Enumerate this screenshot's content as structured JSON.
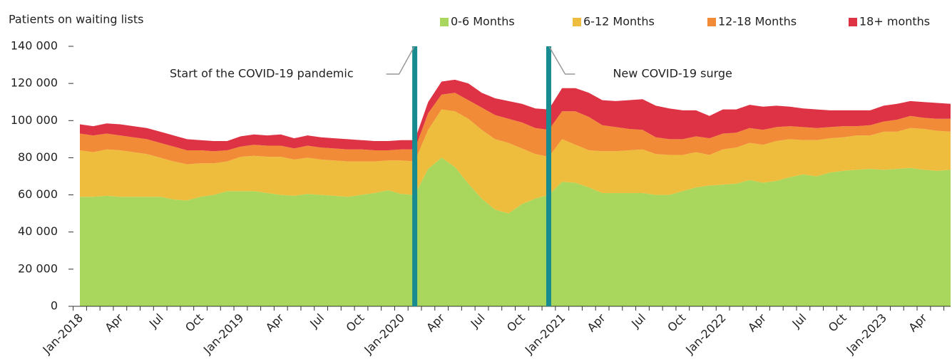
{
  "chart_data": {
    "type": "stacked_area",
    "y_axis_label": "Patients on waiting lists",
    "categories": [
      "Jan-2018",
      null,
      null,
      "Apr",
      null,
      null,
      "Jul",
      null,
      null,
      "Oct",
      null,
      null,
      "Jan-2019",
      null,
      null,
      "Apr",
      null,
      null,
      "Jul",
      null,
      null,
      "Oct",
      null,
      null,
      "Jan-2020",
      null,
      null,
      "Apr",
      null,
      null,
      "Jul",
      null,
      null,
      "Oct",
      null,
      null,
      "Jan-2021",
      null,
      null,
      "Apr",
      null,
      null,
      "Jul",
      null,
      null,
      "Oct",
      null,
      null,
      "Jan-2022",
      null,
      null,
      "Apr",
      null,
      null,
      "Jul",
      null,
      null,
      "Oct",
      null,
      null,
      "Jan-2023",
      null,
      null,
      "Apr",
      null,
      null
    ],
    "series": [
      {
        "name": "0-6 Months",
        "color": "#a9d75e",
        "values": [
          59000,
          59000,
          59500,
          59000,
          59000,
          59000,
          59000,
          57500,
          57000,
          59000,
          60000,
          62000,
          62000,
          62000,
          61000,
          60000,
          59500,
          60500,
          60000,
          59500,
          59000,
          60000,
          61000,
          62500,
          60500,
          60000,
          74000,
          80000,
          75000,
          66000,
          58000,
          52000,
          50000,
          55000,
          58000,
          60000,
          67000,
          66500,
          64000,
          61000,
          61000,
          61000,
          61000,
          60000,
          60000,
          62000,
          64000,
          65000,
          65500,
          66000,
          68000,
          66500,
          67500,
          69500,
          71000,
          70000,
          72000,
          73000,
          73500,
          74000,
          73500,
          74000,
          74500,
          73500,
          73000,
          73500
        ]
      },
      {
        "name": "6-12 Months",
        "color": "#efbd3d",
        "values": [
          25000,
          24000,
          25000,
          25000,
          24000,
          23000,
          21000,
          20500,
          19500,
          18000,
          17000,
          16000,
          18500,
          19000,
          19500,
          20500,
          19500,
          19500,
          19000,
          19000,
          19000,
          18000,
          17000,
          16000,
          18000,
          18000,
          21000,
          26000,
          30000,
          35000,
          37000,
          38000,
          38000,
          30000,
          24000,
          20500,
          23000,
          20500,
          20000,
          22500,
          22500,
          23000,
          23500,
          22000,
          21500,
          19500,
          19000,
          16500,
          19000,
          19500,
          20000,
          20500,
          21500,
          20500,
          18500,
          19500,
          18500,
          18000,
          18500,
          18000,
          20500,
          20000,
          21500,
          22000,
          21500,
          20500
        ]
      },
      {
        "name": "12-18 Months",
        "color": "#f28b37",
        "values": [
          9000,
          9000,
          8500,
          8000,
          8000,
          8000,
          8000,
          8000,
          7500,
          7000,
          6500,
          6000,
          5500,
          6000,
          6000,
          6000,
          6000,
          6500,
          6500,
          6500,
          6500,
          6500,
          6000,
          5500,
          6000,
          6500,
          9000,
          8000,
          10000,
          10000,
          12000,
          13000,
          13000,
          14000,
          14000,
          14500,
          15000,
          18000,
          18000,
          14000,
          13000,
          11500,
          10500,
          9000,
          8500,
          8500,
          8500,
          9000,
          8500,
          8000,
          8000,
          8000,
          7500,
          7000,
          7000,
          6500,
          6000,
          6000,
          5000,
          5500,
          5500,
          6500,
          6500,
          6000,
          6500,
          7000
        ]
      },
      {
        "name": "18+ months",
        "color": "#dd3344",
        "values": [
          5000,
          5000,
          5500,
          6000,
          6000,
          6000,
          6000,
          6000,
          6000,
          5500,
          5500,
          5000,
          5500,
          5500,
          5500,
          6000,
          5500,
          5500,
          5500,
          5500,
          5500,
          5000,
          5000,
          5000,
          5000,
          5000,
          6000,
          7000,
          7000,
          9000,
          8000,
          9000,
          9500,
          10000,
          10500,
          11000,
          12500,
          12500,
          13000,
          13500,
          14000,
          15500,
          16500,
          17000,
          16500,
          15500,
          14000,
          12000,
          13000,
          12500,
          12500,
          12500,
          11500,
          10500,
          10000,
          10000,
          9000,
          8500,
          8500,
          8000,
          8500,
          8500,
          8000,
          8500,
          8500,
          8000
        ]
      }
    ],
    "ylim": [
      0,
      140000
    ],
    "yticks": [
      0,
      {
        "value": 20000,
        "label": "20 000"
      },
      {
        "value": 40000,
        "label": "40 000"
      },
      {
        "value": 60000,
        "label": "60 000"
      },
      {
        "value": 80000,
        "label": "80 000"
      },
      {
        "value": 100000,
        "label": "100 000"
      },
      {
        "value": 120000,
        "label": "120 000"
      },
      {
        "value": 140000,
        "label": "140 000"
      }
    ],
    "annotations": [
      {
        "text": "Start of the COVID-19 pandemic",
        "category_index": 25,
        "color": "#178b8f"
      },
      {
        "text": "New COVID-19 surge",
        "category_index": 35,
        "color": "#178b8f"
      }
    ],
    "legend": "top-right"
  }
}
